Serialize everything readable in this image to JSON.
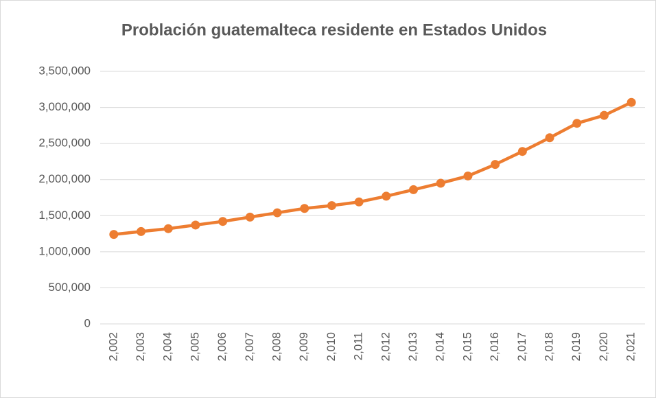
{
  "chart_data": {
    "type": "line",
    "title": "Problación guatemalteca residente en Estados Unidos",
    "categories": [
      "2,002",
      "2,003",
      "2,004",
      "2,005",
      "2,006",
      "2,007",
      "2,008",
      "2,009",
      "2,010",
      "2,011",
      "2,012",
      "2,013",
      "2,014",
      "2,015",
      "2,016",
      "2,017",
      "2,018",
      "2,019",
      "2,020",
      "2,021"
    ],
    "values": [
      1240000,
      1280000,
      1320000,
      1370000,
      1420000,
      1480000,
      1540000,
      1600000,
      1640000,
      1690000,
      1770000,
      1860000,
      1950000,
      2050000,
      2210000,
      2390000,
      2580000,
      2780000,
      2890000,
      3070000
    ],
    "color": "#ed7d31",
    "ylim": [
      0,
      3500000
    ],
    "yticks": [
      0,
      {
        "value": 500000,
        "label": "500,000"
      },
      {
        "value": 1000000,
        "label": "1,000,000"
      },
      {
        "value": 1500000,
        "label": "1,500,000"
      },
      {
        "value": 2000000,
        "label": "2,000,000"
      },
      {
        "value": 2500000,
        "label": "2,500,000"
      },
      {
        "value": 3000000,
        "label": "3,000,000"
      },
      {
        "value": 3500000,
        "label": "3,500,000"
      }
    ],
    "grid": true
  }
}
